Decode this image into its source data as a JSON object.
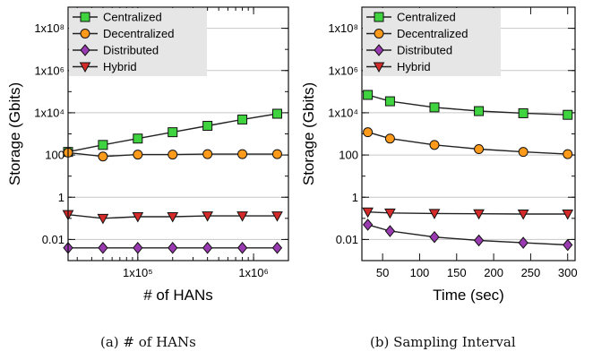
{
  "colors": {
    "centralized": "#3fd43f",
    "decentralized": "#ff9a1a",
    "distributed": "#9a3ab0",
    "hybrid": "#d42a2a",
    "legend_bg": "#e6e6e6",
    "line": "#222222",
    "grid": "#c8c8c8"
  },
  "chart_data": [
    {
      "type": "line",
      "caption": "(a) # of HANs",
      "xlabel": "# of HANs",
      "ylabel": "Storage (Gbits)",
      "xscale": "log",
      "yscale": "log",
      "xlim": [
        25000,
        2000000
      ],
      "ylim": [
        0.001,
        1000000000.0
      ],
      "legend": "top-left",
      "grid": "horizontal",
      "xticks": [
        {
          "value": 100000,
          "label": "1x10⁵"
        },
        {
          "value": 1000000,
          "label": "1x10⁶"
        }
      ],
      "yticks": [
        {
          "value": 0.01,
          "label": "0.01"
        },
        {
          "value": 1,
          "label": "1"
        },
        {
          "value": 100,
          "label": "100"
        },
        {
          "value": 10000,
          "label": "1x10⁴"
        },
        {
          "value": 1000000,
          "label": "1x10⁶"
        },
        {
          "value": 100000000,
          "label": "1x10⁸"
        }
      ],
      "x": [
        25000,
        50000,
        100000,
        200000,
        400000,
        800000,
        1600000
      ],
      "series": [
        {
          "name": "Centralized",
          "key": "centralized",
          "marker": "square",
          "values": [
            140,
            300,
            600,
            1200,
            2400,
            4800,
            9000
          ]
        },
        {
          "name": "Decentralized",
          "key": "decentralized",
          "marker": "circle",
          "values": [
            130,
            85,
            105,
            105,
            110,
            110,
            110
          ]
        },
        {
          "name": "Distributed",
          "key": "distributed",
          "marker": "diamond",
          "values": [
            0.004,
            0.004,
            0.004,
            0.004,
            0.004,
            0.004,
            0.004
          ]
        },
        {
          "name": "Hybrid",
          "key": "hybrid",
          "marker": "triangle-down",
          "values": [
            0.15,
            0.1,
            0.12,
            0.12,
            0.13,
            0.13,
            0.13
          ]
        }
      ]
    },
    {
      "type": "line",
      "caption": "(b) Sampling Interval",
      "xlabel": "Time (sec)",
      "ylabel": "Storage (Gbits)",
      "xscale": "linear",
      "yscale": "log",
      "xlim": [
        22,
        310
      ],
      "ylim": [
        0.001,
        1000000000.0
      ],
      "legend": "top-left",
      "grid": "horizontal",
      "xticks": [
        {
          "value": 50,
          "label": "50"
        },
        {
          "value": 100,
          "label": "100"
        },
        {
          "value": 150,
          "label": "150"
        },
        {
          "value": 200,
          "label": "200"
        },
        {
          "value": 250,
          "label": "250"
        },
        {
          "value": 300,
          "label": "300"
        }
      ],
      "yticks": [
        {
          "value": 0.01,
          "label": "0.01"
        },
        {
          "value": 1,
          "label": "1"
        },
        {
          "value": 100,
          "label": "100"
        },
        {
          "value": 10000,
          "label": "1x10⁴"
        },
        {
          "value": 1000000,
          "label": "1x10⁶"
        },
        {
          "value": 100000000,
          "label": "1x10⁸"
        }
      ],
      "x": [
        30,
        60,
        120,
        180,
        240,
        300
      ],
      "series": [
        {
          "name": "Centralized",
          "key": "centralized",
          "marker": "square",
          "values": [
            70000,
            35000,
            18000,
            12000,
            9500,
            8000
          ]
        },
        {
          "name": "Decentralized",
          "key": "decentralized",
          "marker": "circle",
          "values": [
            1200,
            600,
            300,
            190,
            140,
            110
          ]
        },
        {
          "name": "Distributed",
          "key": "distributed",
          "marker": "diamond",
          "values": [
            0.05,
            0.025,
            0.013,
            0.009,
            0.007,
            0.0055
          ]
        },
        {
          "name": "Hybrid",
          "key": "hybrid",
          "marker": "triangle-down",
          "values": [
            0.2,
            0.18,
            0.17,
            0.165,
            0.16,
            0.16
          ]
        }
      ]
    }
  ]
}
